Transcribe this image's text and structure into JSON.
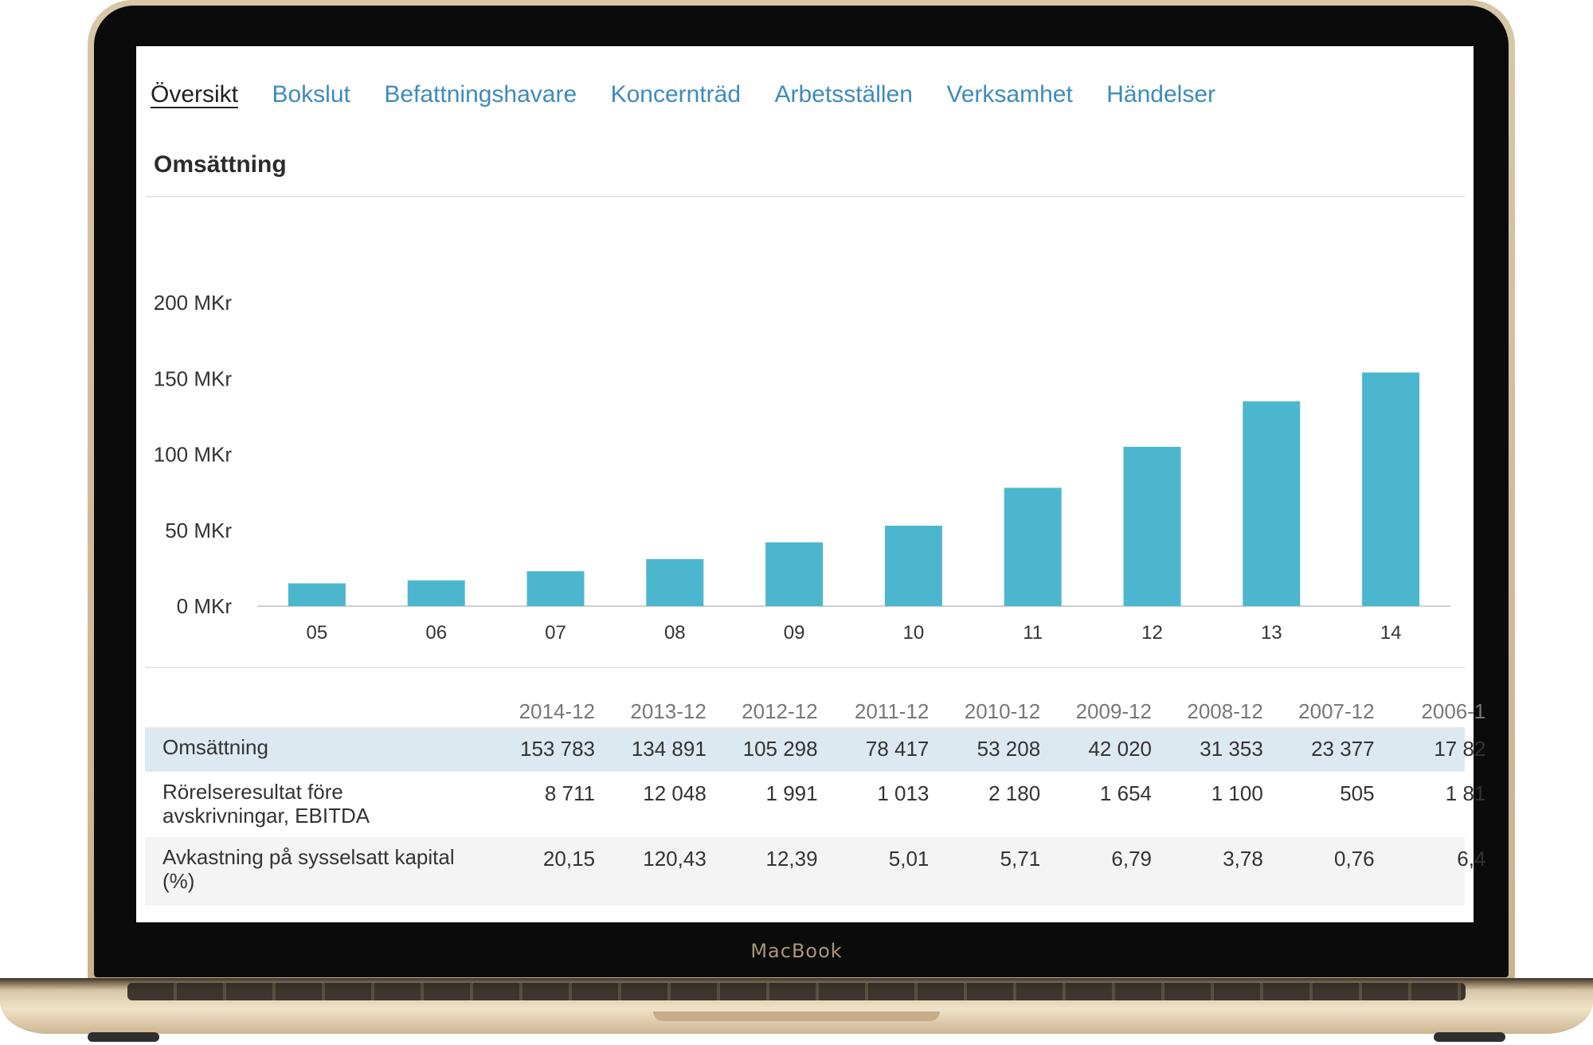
{
  "device": {
    "brand": "MacBook"
  },
  "nav": {
    "tabs": [
      {
        "label": "Översikt",
        "active": true
      },
      {
        "label": "Bokslut",
        "active": false
      },
      {
        "label": "Befattningshavare",
        "active": false
      },
      {
        "label": "Koncernträd",
        "active": false
      },
      {
        "label": "Arbetsställen",
        "active": false
      },
      {
        "label": "Verksamhet",
        "active": false
      },
      {
        "label": "Händelser",
        "active": false
      }
    ]
  },
  "section": {
    "title": "Omsättning"
  },
  "chart_data": {
    "type": "bar",
    "categories": [
      "05",
      "06",
      "07",
      "08",
      "09",
      "10",
      "11",
      "12",
      "13",
      "14"
    ],
    "values": [
      15,
      17,
      23,
      31,
      42,
      53,
      78,
      105,
      135,
      154
    ],
    "y_ticks": [
      "0 MKr",
      "50 MKr",
      "100 MKr",
      "150 MKr",
      "200 MKr"
    ],
    "ylim": [
      0,
      200
    ],
    "bar_color": "#4db6cf",
    "grid": false
  },
  "table": {
    "columns": [
      "2014-12",
      "2013-12",
      "2012-12",
      "2011-12",
      "2010-12",
      "2009-12",
      "2008-12",
      "2007-12",
      "2006-1"
    ],
    "rows": [
      {
        "label": [
          "Omsättning"
        ],
        "values": [
          "153 783",
          "134 891",
          "105 298",
          "78 417",
          "53 208",
          "42 020",
          "31 353",
          "23 377",
          "17 82"
        ]
      },
      {
        "label": [
          "Rörelseresultat före",
          "avskrivningar, EBITDA"
        ],
        "values": [
          "8 711",
          "12 048",
          "1 991",
          "1 013",
          "2 180",
          "1 654",
          "1 100",
          "505",
          "1 81"
        ]
      },
      {
        "label": [
          "Avkastning på sysselsatt kapital",
          "(%)"
        ],
        "values": [
          "20,15",
          "120,43",
          "12,39",
          "5,01",
          "5,71",
          "6,79",
          "3,78",
          "0,76",
          "6,4"
        ]
      }
    ]
  },
  "colors": {
    "link": "#3d8bbd",
    "highlight_row": "#dde9f1",
    "alt_row": "#f4f4f4"
  }
}
